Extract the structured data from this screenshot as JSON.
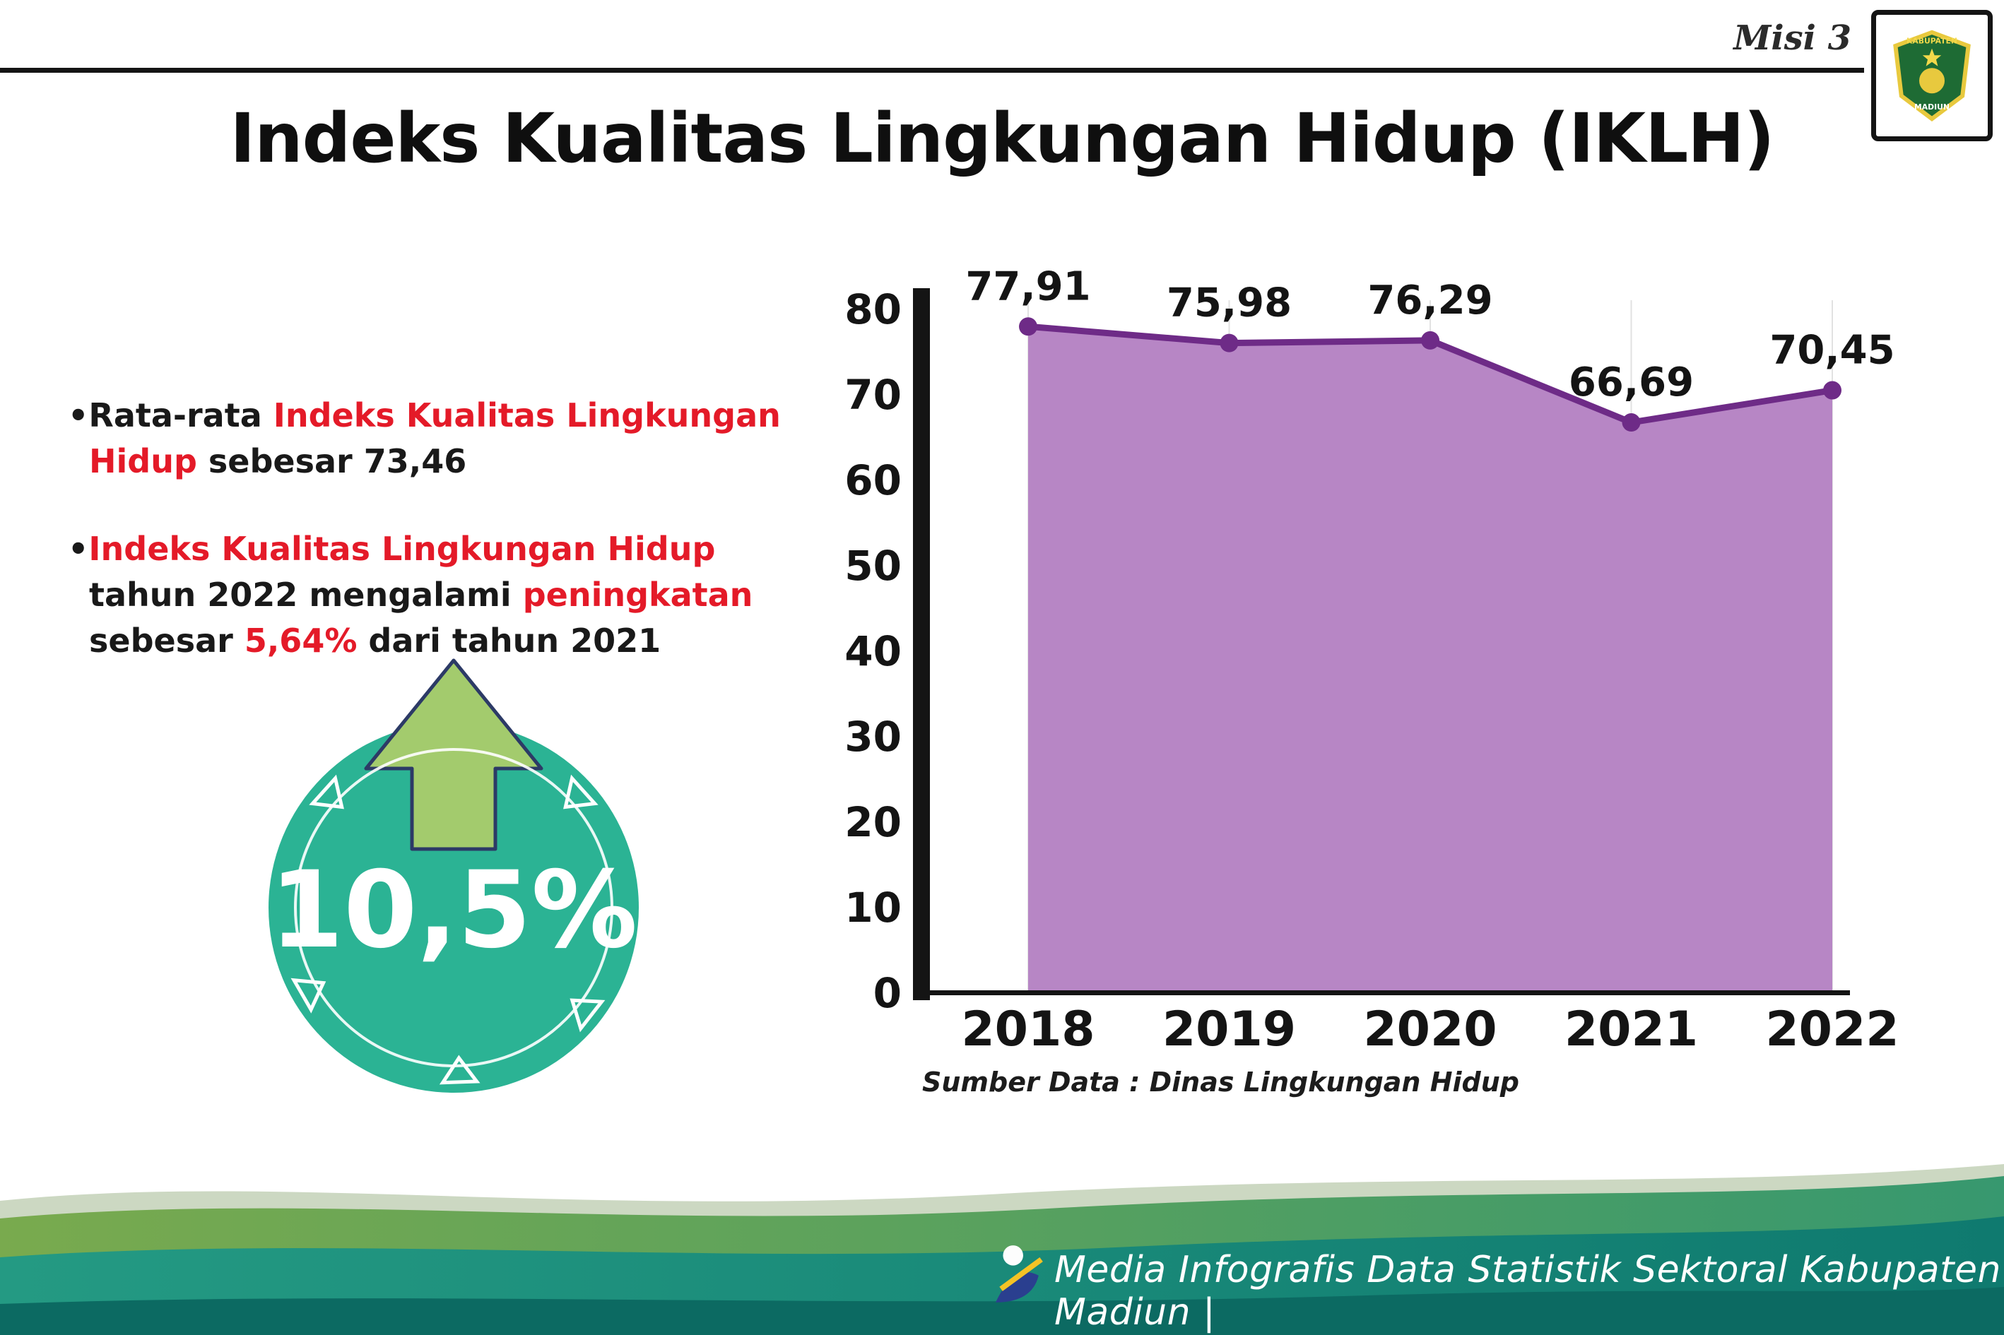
{
  "header": {
    "misi_label": "Misi 3",
    "title": "Indeks Kualitas Lingkungan Hidup (IKLH)",
    "logo": {
      "top_text": "KABUPATEN",
      "bottom_text": "MADIUN"
    }
  },
  "bullets": {
    "marker": "•",
    "items": [
      {
        "segments": [
          {
            "text": "Rata-rata "
          },
          {
            "text": "Indeks Kualitas Lingkungan Hidup",
            "emphasis": "red"
          },
          {
            "text": " sebesar 73,46"
          }
        ]
      },
      {
        "segments": [
          {
            "text": "Indeks Kualitas Lingkungan Hidup",
            "emphasis": "red"
          },
          {
            "text": " tahun 2022 mengalami "
          },
          {
            "text": "peningkatan",
            "emphasis": "red"
          },
          {
            "text": " sebesar "
          },
          {
            "text": "5,64%",
            "emphasis": "red"
          },
          {
            "text": " dari tahun 2021"
          }
        ]
      }
    ]
  },
  "badge": {
    "value": "10,5%",
    "direction": "up",
    "circle_color": "#2bb394",
    "arrow_color": "#a3cb6d"
  },
  "chart_data": {
    "type": "area",
    "categories": [
      "2018",
      "2019",
      "2020",
      "2021",
      "2022"
    ],
    "values": [
      77.91,
      75.98,
      76.29,
      66.69,
      70.45
    ],
    "value_labels": [
      "77,91",
      "75,98",
      "76,29",
      "66,69",
      "70,45"
    ],
    "title": "Indeks Kualitas Lingkungan Hidup (IKLH)",
    "xlabel": "",
    "ylabel": "",
    "ylim": [
      0,
      80
    ],
    "ytick_step": 10,
    "grid": "vertical-light",
    "legend": "none",
    "area_color": "#b786c5",
    "line_color": "#6e2b87",
    "marker_color": "#6e2b87",
    "axis_color": "#141414"
  },
  "source_note": "Sumber Data : Dinas Lingkungan Hidup",
  "footer": {
    "text": "Media Infografis Data Statistik Sektoral Kabupaten Madiun |"
  }
}
